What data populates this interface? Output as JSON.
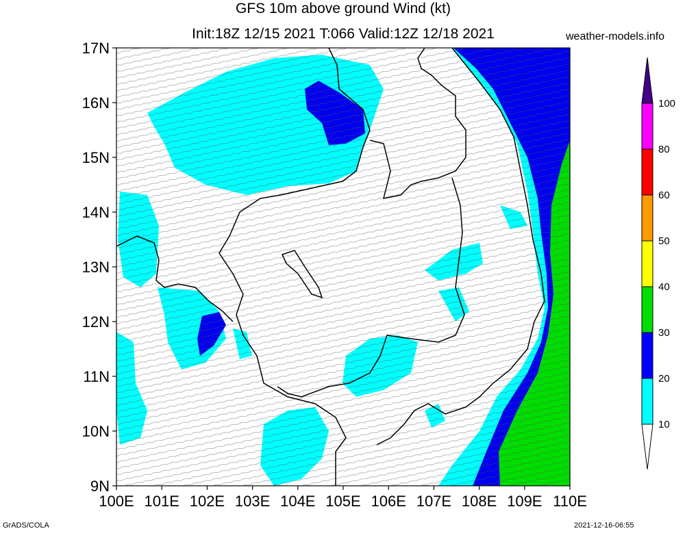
{
  "header": {
    "title_line1": "GFS 10m above ground Wind (kt)",
    "title_line2": "Init:18Z 12/15 2021 T:066 Valid:12Z 12/18 2021",
    "site": "weather-models.info"
  },
  "footer": {
    "left": "GrADS/COLA",
    "right": "2021-12-16-06:55"
  },
  "map": {
    "lon_range": [
      100,
      110
    ],
    "lat_range": [
      9,
      17
    ],
    "x_ticks": [
      "100E",
      "101E",
      "102E",
      "103E",
      "104E",
      "105E",
      "106E",
      "107E",
      "108E",
      "109E",
      "110E"
    ],
    "y_ticks": [
      "17N",
      "16N",
      "15N",
      "14N",
      "13N",
      "12N",
      "11N",
      "10N",
      "9N"
    ]
  },
  "colorbar": {
    "bins": [
      {
        "color": "#00ffff",
        "label": "10"
      },
      {
        "color": "#0000ff",
        "label": "20"
      },
      {
        "color": "#00dd00",
        "label": "30"
      },
      {
        "color": "#ffff00",
        "label": "40"
      },
      {
        "color": "#ff9900",
        "label": "50"
      },
      {
        "color": "#ff0000",
        "label": "60"
      },
      {
        "color": "#ff00ff",
        "label": "80"
      },
      {
        "color": "#440088",
        "label": "100"
      }
    ],
    "below_color": "#ffffff"
  }
}
